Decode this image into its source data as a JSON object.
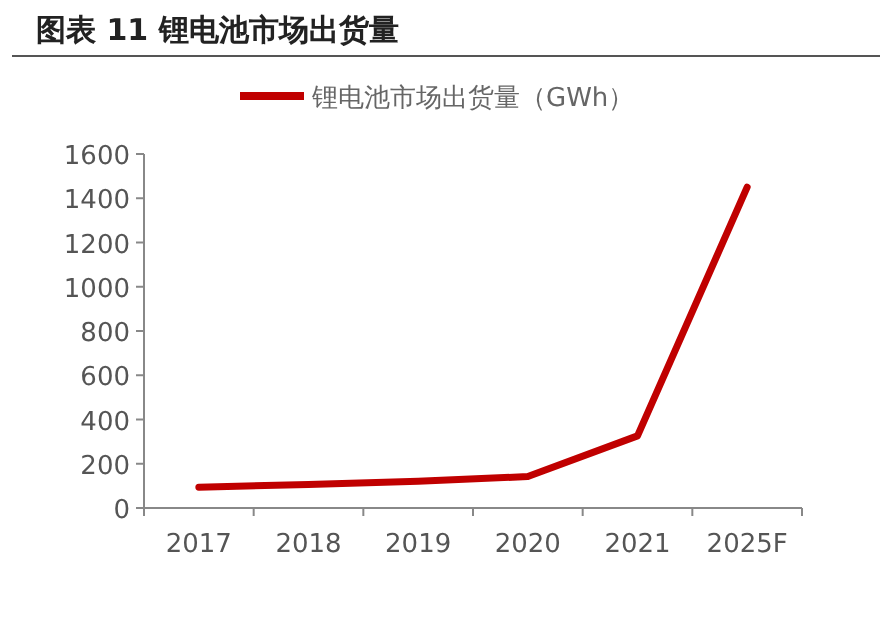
{
  "chart_data": {
    "type": "line",
    "title": "图表 11 锂电池市场出货量",
    "categories": [
      "2017",
      "2018",
      "2019",
      "2020",
      "2021",
      "2025F"
    ],
    "series": [
      {
        "name": "锂电池市场出货量（GWh）",
        "color": "#c00000",
        "values": [
          94,
          106,
          121,
          142,
          326,
          1450
        ]
      }
    ],
    "ylim": [
      0,
      1600
    ],
    "yticks": [
      0,
      200,
      400,
      600,
      800,
      1000,
      1200,
      1400,
      1600
    ],
    "legend": "top",
    "grid": false,
    "marker": "none",
    "line_style": "solid"
  }
}
